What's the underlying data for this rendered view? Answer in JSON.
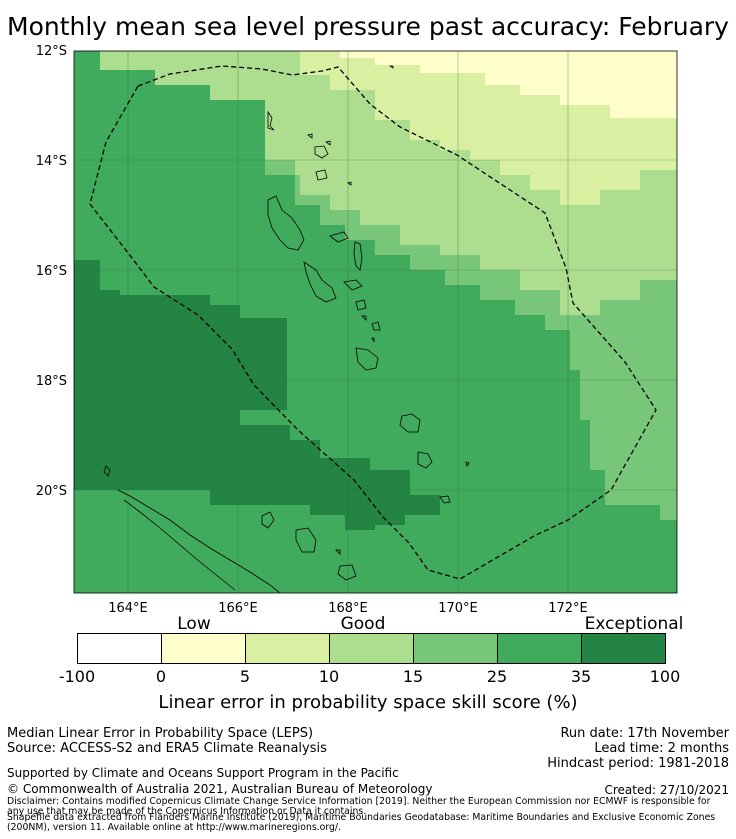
{
  "title": "Monthly mean sea level pressure past accuracy: February",
  "map": {
    "lat_labels": [
      "12°S",
      "14°S",
      "16°S",
      "18°S",
      "20°S"
    ],
    "lon_labels": [
      "164°E",
      "166°E",
      "168°E",
      "170°E",
      "172°E"
    ],
    "extent": {
      "lon": [
        163,
        174
      ],
      "lat": [
        -22,
        -12
      ]
    },
    "region": "Vanuatu EEZ (dashed outline)"
  },
  "colorbar": {
    "categories": [
      "Low",
      "Good",
      "Exceptional"
    ],
    "ticks": [
      "-100",
      "0",
      "5",
      "10",
      "15",
      "25",
      "35",
      "100"
    ],
    "colors": [
      "#ffffff",
      "#ffffcc",
      "#d9f0a3",
      "#addd8e",
      "#78c679",
      "#41ab5d",
      "#238443"
    ],
    "label": "Linear error in probability space skill score (%)"
  },
  "info": {
    "line1": "Median Linear Error in Probability Space (LEPS)",
    "line2": "Source: ACCESS-S2 and ERA5 Climate Reanalysis",
    "run_date": "Run date: 17th November",
    "lead_time": "Lead time: 2 months",
    "hindcast": "Hindcast period: 1981-2018",
    "supported": "Supported by Climate and Oceans Support Program in the Pacific",
    "copyright": "© Commonwealth of Australia 2021, Australian Bureau of Meteorology",
    "created": "Created: 27/10/2021",
    "disclaimer": "Disclaimer: Contains modified Copernicus Climate Change Service Information [2019]. Neither the European Commission nor ECMWF is responsible for any use that may be made of the Copernicus Information or Data it contains.",
    "shapefile": "Shapefile data extracted from Flanders Marine Institute (2019), Maritime Boundaries Geodatabase: Maritime Boundaries and Exclusive Economic Zones (200NM), version 11. Available online at http://www.marineregions.org/."
  }
}
